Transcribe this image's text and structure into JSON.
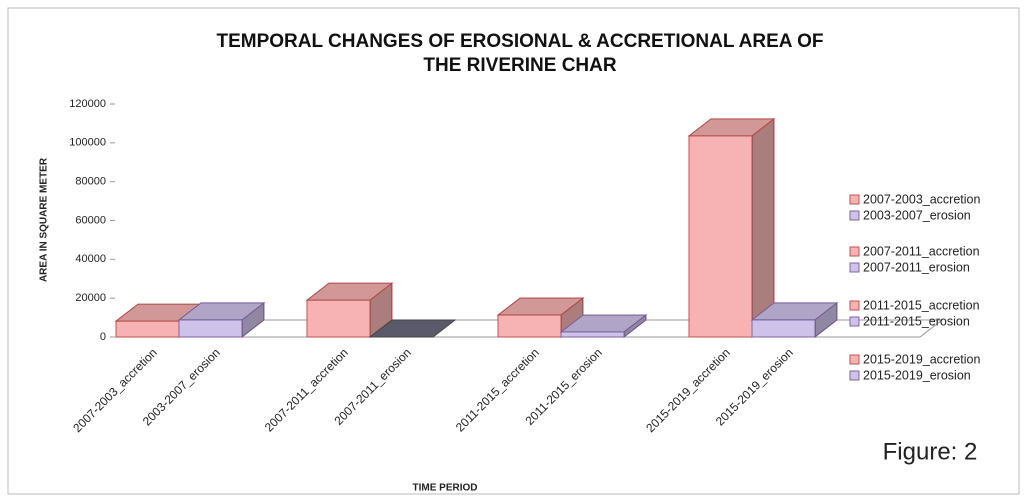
{
  "chart_data": {
    "type": "bar3d",
    "title": "TEMPORAL CHANGES OF EROSIONAL & ACCRETIONAL AREA OF THE RIVERINE CHAR",
    "xlabel": "TIME PERIOD",
    "ylabel": "AREA IN SQUARE METER",
    "annotation": "Figure: 2",
    "categories": [
      "2007-2003_accretion",
      "2003-2007_erosion",
      "2007-2011_accretion",
      "2007-2011_erosion",
      "2011-2015_accretion",
      "2011-2015_erosion",
      "2015-2019_accretion",
      "2015-2019_erosion"
    ],
    "values": [
      8200,
      8800,
      19000,
      0,
      11300,
      2600,
      103600,
      8800
    ],
    "colors": [
      "#f7b3b3",
      "#cfc2ea",
      "#f7b3b3",
      "#cfc2ea",
      "#f7b3b3",
      "#cfc2ea",
      "#f7b3b3",
      "#cfc2ea"
    ],
    "ylim": [
      0,
      120000
    ],
    "yticks": [
      0,
      20000,
      40000,
      60000,
      80000,
      100000,
      120000
    ],
    "legend": "right"
  }
}
